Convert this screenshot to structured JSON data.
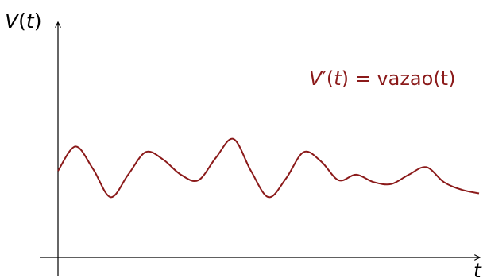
{
  "chart_data": {
    "type": "line",
    "title": "",
    "xlabel": "t",
    "ylabel": "V(t)",
    "annotation": {
      "var": "V",
      "prime": "′",
      "arg": "(",
      "t": "t",
      "close": ")",
      "rhs": " = vazao(t)"
    },
    "x_ticks": [],
    "y_ticks": [],
    "grid": false,
    "legend": "none",
    "series": [
      {
        "color": "#8b1a1a",
        "x": [
          0,
          0.5,
          1,
          1.5,
          2,
          2.5,
          3,
          3.5,
          4,
          4.5,
          5,
          5.5,
          6,
          6.5,
          7,
          7.5,
          8,
          8.5,
          9,
          9.5,
          10,
          10.5,
          11,
          11.5,
          12
        ],
        "y": [
          2.3,
          2.95,
          2.35,
          1.6,
          2.2,
          2.8,
          2.6,
          2.2,
          2.05,
          2.65,
          3.15,
          2.3,
          1.6,
          2.1,
          2.8,
          2.55,
          2.05,
          2.2,
          2.0,
          1.95,
          2.2,
          2.4,
          2.0,
          1.8,
          1.7
        ]
      }
    ],
    "xlim": [
      0,
      12
    ],
    "ylim": [
      0,
      6
    ]
  },
  "colors": {
    "axis": "#000000",
    "curve": "#8b1a1a"
  }
}
